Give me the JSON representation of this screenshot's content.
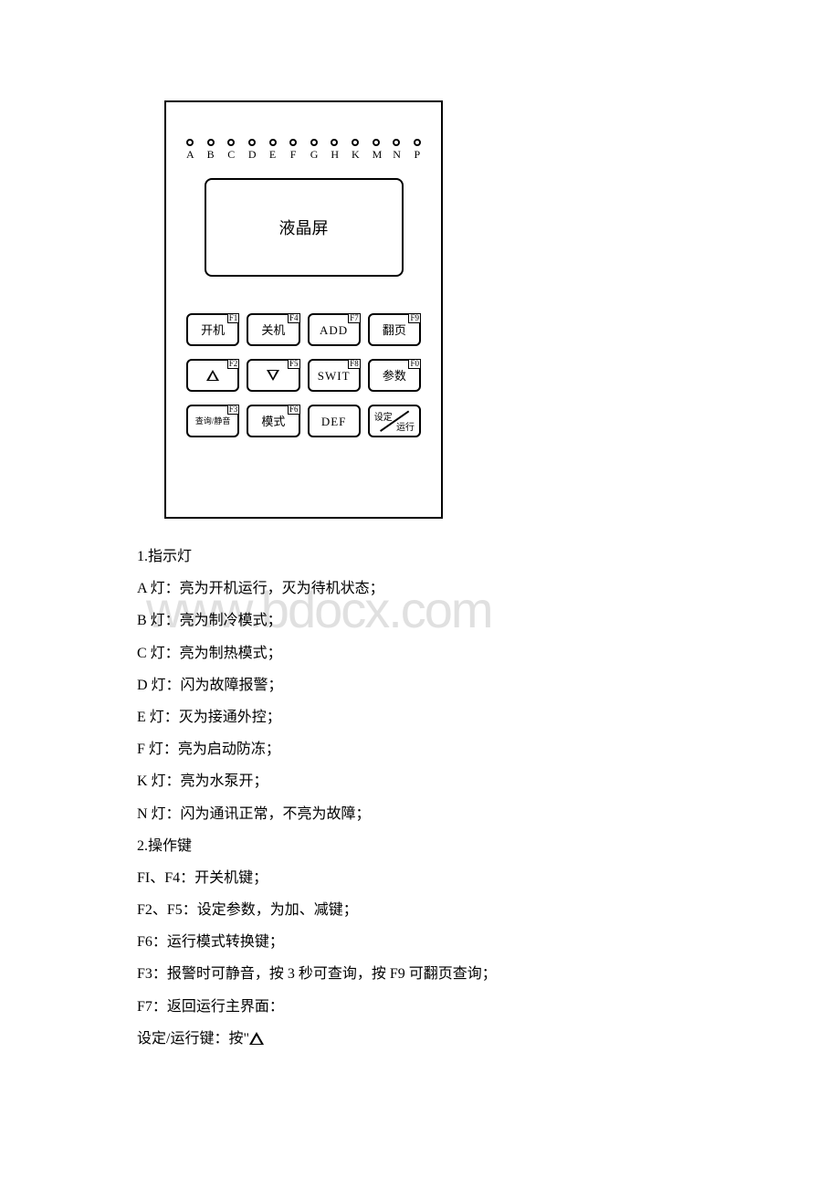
{
  "panel": {
    "led_letters": [
      "A",
      "B",
      "C",
      "D",
      "E",
      "F",
      "G",
      "H",
      "K",
      "M",
      "N",
      "P"
    ],
    "lcd_label": "液晶屏",
    "buttons": [
      {
        "fkey": "F1",
        "label": "开机",
        "type": "cn"
      },
      {
        "fkey": "F4",
        "label": "关机",
        "type": "cn"
      },
      {
        "fkey": "F7",
        "label": "ADD",
        "type": "en"
      },
      {
        "fkey": "F9",
        "label": "翻页",
        "type": "cn"
      },
      {
        "fkey": "F2",
        "label": "△",
        "type": "tri-up"
      },
      {
        "fkey": "F5",
        "label": "▽",
        "type": "tri-down"
      },
      {
        "fkey": "F8",
        "label": "SWIT",
        "type": "en"
      },
      {
        "fkey": "F0",
        "label": "参数",
        "type": "cn"
      },
      {
        "fkey": "F3",
        "label": "查询/静音",
        "type": "cn-small"
      },
      {
        "fkey": "F6",
        "label": "模式",
        "type": "cn"
      },
      {
        "fkey": "",
        "label": "DEF",
        "type": "en-nofkey"
      },
      {
        "fkey": "",
        "label": "设定/运行",
        "type": "diag"
      }
    ],
    "diag_top": "设定",
    "diag_bottom": "运行"
  },
  "text": {
    "h1": "1.指示灯",
    "a": "A 灯：亮为开机运行，灭为待机状态；",
    "b": "B 灯：亮为制冷模式；",
    "c": "C 灯：亮为制热模式；",
    "d": "D 灯：闪为故障报警；",
    "e": "E 灯：灭为接通外控；",
    "f": "F 灯：亮为启动防冻；",
    "k": "K 灯：亮为水泵开；",
    "n": "N 灯：闪为通讯正常，不亮为故障；",
    "h2": "2.操作键",
    "fi_f4": "FI、F4：开关机键；",
    "f2_f5": "F2、F5：设定参数，为加、减键；",
    "f6": "F6：运行模式转换键；",
    "f3": "F3：报警时可静音，按 3 秒可查询，按 F9 可翻页查询；",
    "f7": "F7：返回运行主界面：",
    "last_pre": "设定/运行键：按\"",
    "last_post": ""
  },
  "watermark": "www.bdocx.com",
  "colors": {
    "bg": "#ffffff",
    "ink": "#000000",
    "watermark": "#e0e0e0"
  }
}
